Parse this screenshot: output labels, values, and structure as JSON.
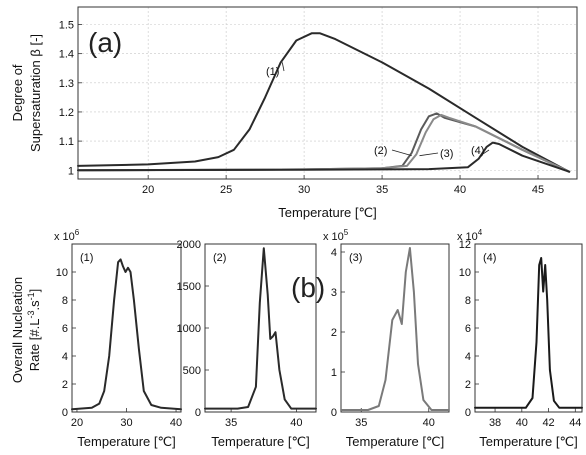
{
  "figure": {
    "top_tag": "(a)",
    "bottom_tag": "(b)",
    "bottom_ylabel_line1": "Overall Nucleation",
    "bottom_ylabel_line2": "Rate [#.L",
    "bottom_ylabel_exp1": "-3",
    "bottom_ylabel_mid": ".s",
    "bottom_ylabel_exp2": "-1",
    "bottom_ylabel_end": "]"
  },
  "chart_data": [
    {
      "type": "line",
      "panel": "(a)",
      "xlabel": "Temperature  [℃]",
      "ylabel_line1": "Degree of",
      "ylabel_line2": "Supersaturation β  [-]",
      "xlim": [
        15.5,
        47.5
      ],
      "ylim": [
        0.97,
        1.56
      ],
      "xticks": [
        20,
        25,
        30,
        35,
        40,
        45
      ],
      "yticks": [
        1,
        1.1,
        1.2,
        1.3,
        1.4,
        1.5
      ],
      "grid": true,
      "labels": [
        "(1)",
        "(2)",
        "(3)",
        "(4)"
      ],
      "series": [
        {
          "color": "#2a2a2a",
          "x": [
            15.5,
            20,
            23,
            24.5,
            25.5,
            26.5,
            27.5,
            28.5,
            29.5,
            30.5,
            31,
            32,
            35,
            38,
            41,
            44,
            47
          ],
          "y": [
            1.015,
            1.02,
            1.03,
            1.045,
            1.07,
            1.14,
            1.25,
            1.37,
            1.445,
            1.47,
            1.47,
            1.45,
            1.37,
            1.28,
            1.18,
            1.08,
            0.995
          ]
        },
        {
          "color": "#5a5a5a",
          "x": [
            15.5,
            30,
            35,
            36.3,
            36.9,
            37.5,
            38,
            38.5,
            39,
            41,
            44,
            47
          ],
          "y": [
            1.0,
            1.003,
            1.007,
            1.015,
            1.06,
            1.14,
            1.185,
            1.195,
            1.18,
            1.15,
            1.07,
            0.995
          ]
        },
        {
          "color": "#8a8a8a",
          "x": [
            15.5,
            30,
            35,
            36.6,
            37.2,
            37.8,
            38.3,
            38.8,
            39.3,
            41,
            44,
            47
          ],
          "y": [
            1.0,
            1.003,
            1.007,
            1.015,
            1.055,
            1.13,
            1.175,
            1.19,
            1.18,
            1.15,
            1.07,
            0.995
          ]
        },
        {
          "color": "#2a2a2a",
          "x": [
            15.5,
            30,
            38,
            40.5,
            41.2,
            41.7,
            42.1,
            42.5,
            44,
            47
          ],
          "y": [
            1.0,
            1.002,
            1.004,
            1.01,
            1.04,
            1.08,
            1.095,
            1.09,
            1.05,
            0.995
          ]
        }
      ]
    },
    {
      "type": "line",
      "panel": "(1)",
      "xlabel": "Temperature  [℃]",
      "multiplier": "x 10",
      "multiplier_exp": "6",
      "xlim": [
        19,
        41
      ],
      "ylim": [
        0,
        12
      ],
      "xticks": [
        20,
        30,
        40
      ],
      "yticks": [
        0,
        2,
        4,
        6,
        8,
        10
      ],
      "series": [
        {
          "color": "#2a2a2a",
          "x": [
            19,
            23,
            24.5,
            25.5,
            26.5,
            27.5,
            28.3,
            28.8,
            29.3,
            29.8,
            30.3,
            30.8,
            31.5,
            32.5,
            33.5,
            35,
            37,
            41
          ],
          "y": [
            0.2,
            0.3,
            0.6,
            1.5,
            4.0,
            8.0,
            10.7,
            10.9,
            10.4,
            10.0,
            10.3,
            10.0,
            8.0,
            4.5,
            1.5,
            0.5,
            0.3,
            0.2
          ]
        }
      ]
    },
    {
      "type": "line",
      "panel": "(2)",
      "xlabel": "Temperature  [℃]",
      "xlim": [
        33,
        41.5
      ],
      "ylim": [
        0,
        2000
      ],
      "xticks": [
        35,
        40
      ],
      "yticks": [
        0,
        500,
        1000,
        1500,
        2000
      ],
      "series": [
        {
          "color": "#2a2a2a",
          "x": [
            33,
            35.5,
            36.3,
            36.9,
            37.2,
            37.5,
            37.8,
            38.0,
            38.2,
            38.4,
            38.7,
            39.1,
            39.6,
            41.5
          ],
          "y": [
            40,
            40,
            60,
            300,
            1300,
            1950,
            1400,
            870,
            900,
            950,
            500,
            150,
            40,
            40
          ]
        }
      ]
    },
    {
      "type": "line",
      "panel": "(3)",
      "xlabel": "Temperature  [℃]",
      "multiplier": "x 10",
      "multiplier_exp": "5",
      "xlim": [
        33.5,
        41.5
      ],
      "ylim": [
        0,
        4.2
      ],
      "xticks": [
        35,
        40
      ],
      "yticks": [
        0,
        1,
        2,
        3,
        4
      ],
      "series": [
        {
          "color": "#7a7a7a",
          "x": [
            33.5,
            35.5,
            36.3,
            36.8,
            37.3,
            37.7,
            38.0,
            38.3,
            38.6,
            38.9,
            39.2,
            39.6,
            40.2,
            41.5
          ],
          "y": [
            0.05,
            0.05,
            0.15,
            0.8,
            2.3,
            2.55,
            2.2,
            3.5,
            4.1,
            3.0,
            1.2,
            0.3,
            0.05,
            0.05
          ]
        }
      ]
    },
    {
      "type": "line",
      "panel": "(4)",
      "xlabel": "Temperature  [℃]",
      "multiplier": "x 10",
      "multiplier_exp": "4",
      "xlim": [
        36.5,
        44.5
      ],
      "ylim": [
        0,
        12
      ],
      "xticks": [
        38,
        40,
        42,
        44
      ],
      "yticks": [
        0,
        2,
        4,
        6,
        8,
        10,
        12
      ],
      "series": [
        {
          "color": "#1a1a1a",
          "x": [
            36.5,
            40.3,
            40.8,
            41.1,
            41.3,
            41.45,
            41.6,
            41.75,
            41.9,
            42.1,
            42.4,
            42.8,
            44.5
          ],
          "y": [
            0.3,
            0.3,
            1.0,
            5.0,
            10.5,
            11.0,
            8.6,
            10.5,
            8.0,
            3.0,
            0.8,
            0.3,
            0.3
          ]
        }
      ]
    }
  ]
}
